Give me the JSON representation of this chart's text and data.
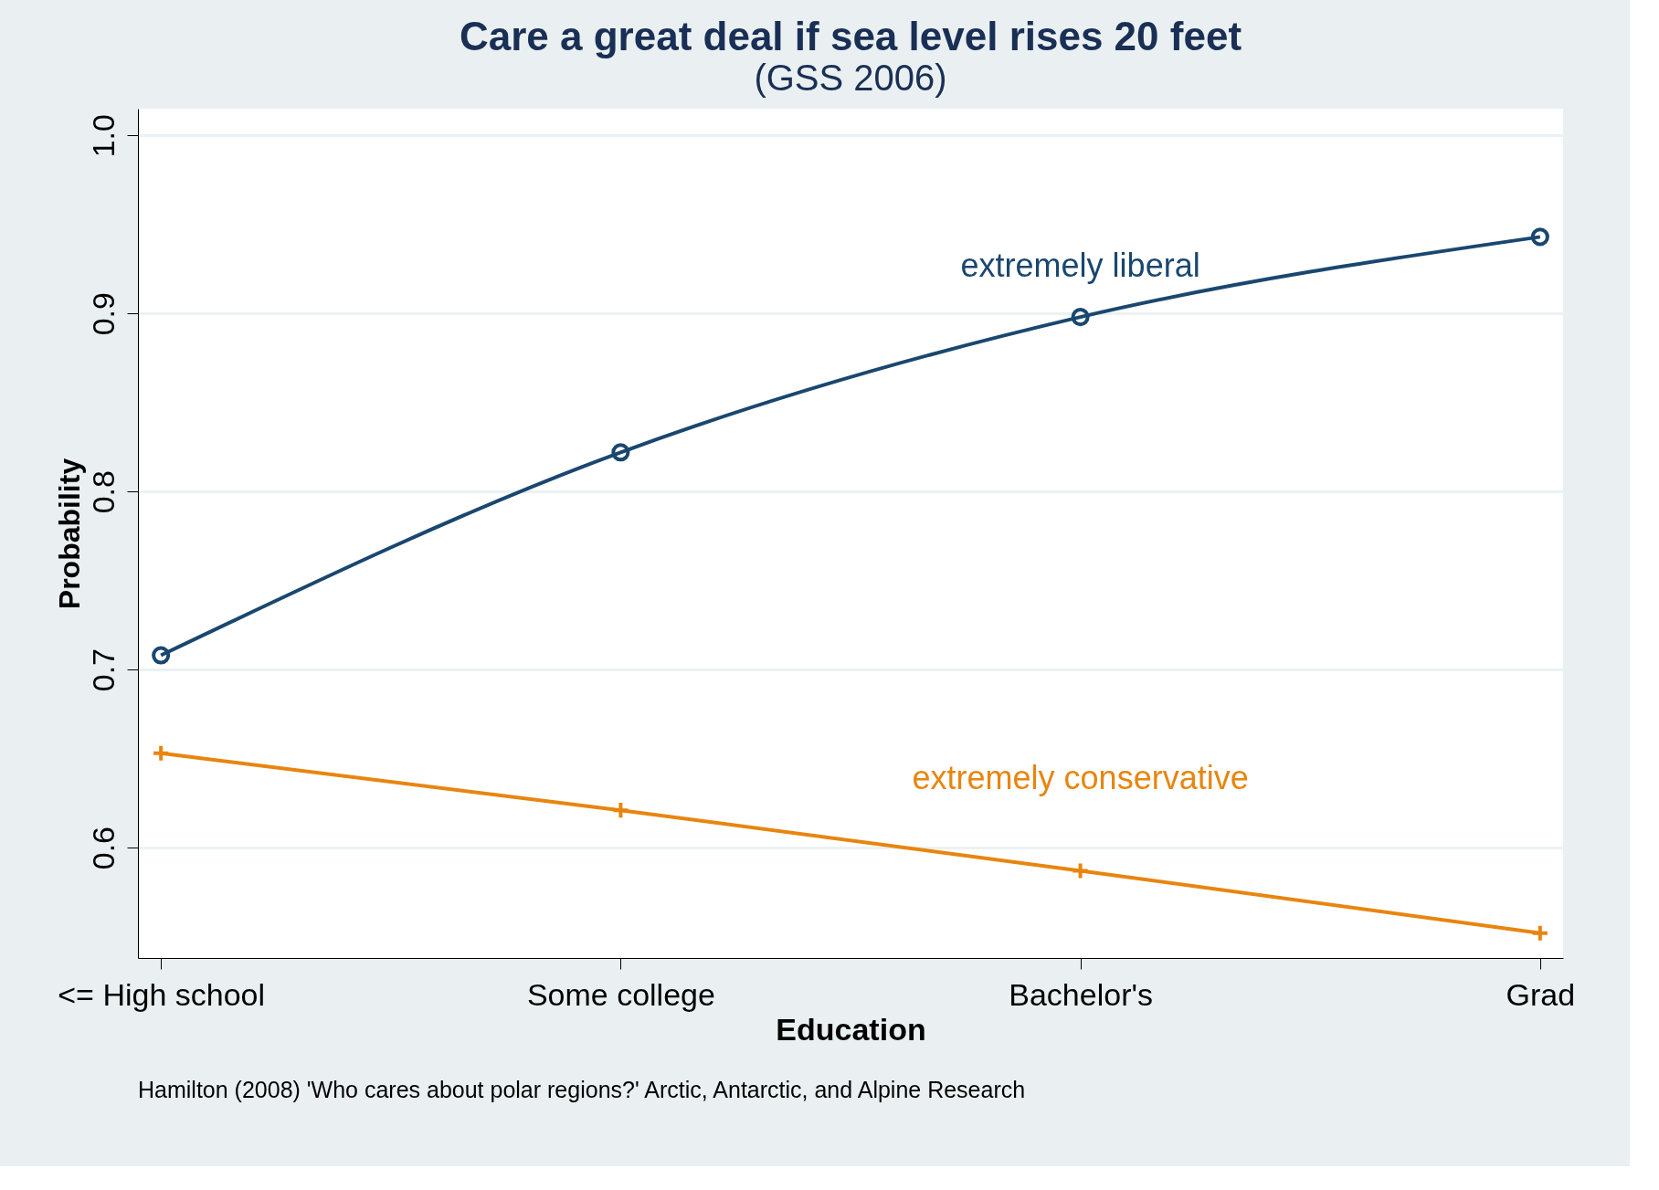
{
  "chart_data": {
    "type": "line",
    "title": "Care a great deal if sea level rises 20 feet",
    "subtitle": "(GSS 2006)",
    "xlabel": "Education",
    "ylabel": "Probability",
    "categories": [
      "<= High school",
      "Some college",
      "Bachelor's",
      "Grad"
    ],
    "series": [
      {
        "name": "extremely liberal",
        "color": "#1a476f",
        "marker": "circle",
        "values": [
          0.708,
          0.822,
          0.898,
          0.943
        ]
      },
      {
        "name": "extremely conservative",
        "color": "#e8850f",
        "marker": "cross",
        "values": [
          0.653,
          0.621,
          0.587,
          0.552
        ]
      }
    ],
    "ylim": [
      0.538,
      1.015
    ],
    "yticks": [
      0.6,
      0.7,
      0.8,
      0.9,
      {
        "value": 1.0,
        "label": "1.0"
      }
    ],
    "grid": "y",
    "legend": false,
    "line_style": "solid",
    "annotations": [
      "Hamilton (2008) 'Who cares about polar regions?'  Arctic, Antarctic, and Alpine Research"
    ]
  }
}
